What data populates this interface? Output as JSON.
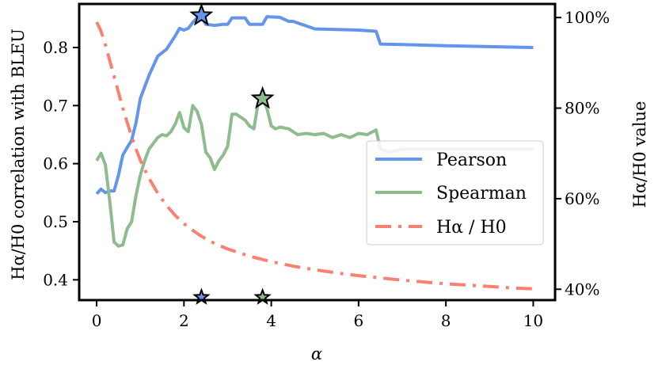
{
  "chart_data": {
    "type": "line",
    "xlabel": "α",
    "ylabel_left": "Hα/H0 correlation with BLEU",
    "ylabel_right": "Hα/H0 value",
    "xlim": [
      -0.4,
      10.5
    ],
    "ylim_left": [
      0.365,
      0.875
    ],
    "ylim_right": [
      0.376,
      1.03
    ],
    "x_ticks": [
      0,
      2,
      4,
      6,
      8,
      10
    ],
    "y_ticks_left": [
      0.4,
      0.5,
      0.6,
      0.7,
      0.8
    ],
    "y_ticks_right": [
      0.4,
      0.6,
      0.8,
      1.0
    ],
    "y_tick_labels_right": [
      "40%",
      "60%",
      "80%",
      "100%"
    ],
    "grid": false,
    "legend_position": "center-right",
    "series": [
      {
        "name": "Pearson",
        "axis": "left",
        "color": "#6495ed",
        "style": "solid",
        "x": [
          0,
          0.1,
          0.2,
          0.3,
          0.4,
          0.5,
          0.6,
          0.7,
          0.8,
          0.9,
          1.0,
          1.2,
          1.4,
          1.6,
          1.8,
          1.9,
          2.0,
          2.1,
          2.2,
          2.3,
          2.4,
          2.5,
          2.7,
          2.9,
          3.0,
          3.1,
          3.2,
          3.4,
          3.5,
          3.8,
          3.9,
          4.2,
          4.4,
          4.5,
          5.0,
          6.0,
          6.4,
          6.5,
          7.0,
          8.0,
          10.0
        ],
        "y": [
          0.548,
          0.556,
          0.55,
          0.553,
          0.553,
          0.58,
          0.615,
          0.628,
          0.64,
          0.67,
          0.712,
          0.752,
          0.785,
          0.797,
          0.82,
          0.833,
          0.83,
          0.833,
          0.843,
          0.851,
          0.855,
          0.84,
          0.838,
          0.84,
          0.84,
          0.851,
          0.851,
          0.851,
          0.84,
          0.84,
          0.853,
          0.852,
          0.845,
          0.845,
          0.832,
          0.83,
          0.828,
          0.806,
          0.805,
          0.803,
          0.8
        ]
      },
      {
        "name": "Spearman",
        "axis": "left",
        "color": "#8fbc8f",
        "style": "solid",
        "x": [
          0,
          0.1,
          0.2,
          0.3,
          0.4,
          0.5,
          0.6,
          0.7,
          0.8,
          0.9,
          1.0,
          1.1,
          1.2,
          1.3,
          1.4,
          1.5,
          1.6,
          1.7,
          1.8,
          1.9,
          2.0,
          2.1,
          2.2,
          2.3,
          2.4,
          2.5,
          2.6,
          2.7,
          2.8,
          2.9,
          3.0,
          3.1,
          3.2,
          3.3,
          3.4,
          3.5,
          3.6,
          3.7,
          3.8,
          3.9,
          4.0,
          4.1,
          4.2,
          4.4,
          4.6,
          4.8,
          5.0,
          5.2,
          5.4,
          5.6,
          5.8,
          6.0,
          6.2,
          6.4,
          6.5,
          6.7,
          7.0,
          8.0,
          10.0
        ],
        "y": [
          0.605,
          0.618,
          0.598,
          0.535,
          0.465,
          0.458,
          0.46,
          0.488,
          0.5,
          0.545,
          0.58,
          0.605,
          0.625,
          0.635,
          0.645,
          0.65,
          0.648,
          0.655,
          0.668,
          0.688,
          0.662,
          0.655,
          0.7,
          0.69,
          0.668,
          0.62,
          0.61,
          0.59,
          0.605,
          0.615,
          0.63,
          0.685,
          0.685,
          0.68,
          0.675,
          0.665,
          0.66,
          0.705,
          0.712,
          0.695,
          0.665,
          0.66,
          0.663,
          0.66,
          0.65,
          0.652,
          0.65,
          0.652,
          0.645,
          0.65,
          0.645,
          0.652,
          0.65,
          0.658,
          0.625,
          0.62,
          0.625,
          0.625,
          0.625
        ]
      },
      {
        "name": "Hα / H0",
        "axis": "right",
        "color": "#fa8072",
        "style": "dashdot",
        "x": [
          0,
          0.1,
          0.2,
          0.3,
          0.4,
          0.5,
          0.6,
          0.7,
          0.8,
          0.9,
          1.0,
          1.2,
          1.4,
          1.6,
          1.8,
          2.0,
          2.2,
          2.4,
          2.6,
          2.8,
          3.0,
          3.5,
          4.0,
          4.5,
          5.0,
          5.5,
          6.0,
          6.5,
          7.0,
          7.5,
          8.0,
          8.5,
          9.0,
          9.5,
          10.0
        ],
        "y": [
          0.99,
          0.97,
          0.94,
          0.905,
          0.87,
          0.835,
          0.8,
          0.768,
          0.738,
          0.71,
          0.685,
          0.645,
          0.612,
          0.585,
          0.563,
          0.545,
          0.53,
          0.517,
          0.506,
          0.497,
          0.489,
          0.473,
          0.461,
          0.451,
          0.443,
          0.436,
          0.43,
          0.425,
          0.42,
          0.416,
          0.412,
          0.409,
          0.406,
          0.403,
          0.401
        ]
      }
    ],
    "markers": [
      {
        "series": "Pearson",
        "type": "star",
        "x": 2.4,
        "y": 0.855,
        "color": "#6495ed"
      },
      {
        "series": "Spearman",
        "type": "star",
        "x": 3.8,
        "y": 0.712,
        "color": "#8fbc8f"
      },
      {
        "series": "Pearson",
        "type": "star",
        "x": 2.4,
        "y": 0.37,
        "color": "#6495ed"
      },
      {
        "series": "Spearman",
        "type": "star",
        "x": 3.8,
        "y": 0.37,
        "color": "#8fbc8f"
      }
    ]
  }
}
